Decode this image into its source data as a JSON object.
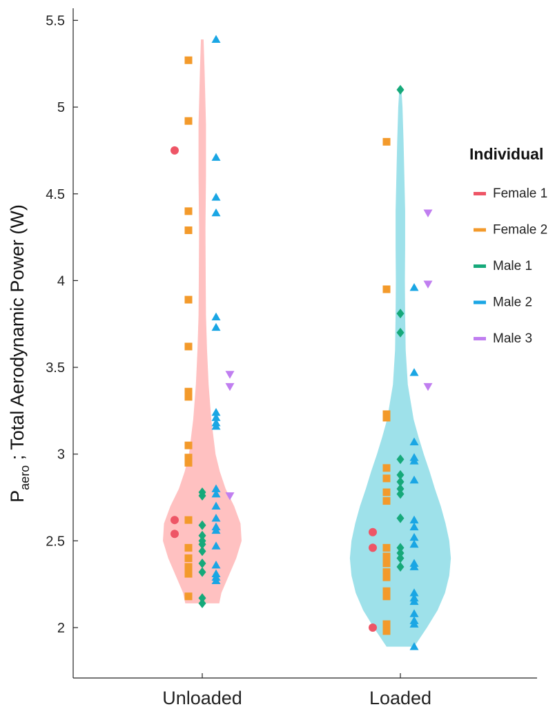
{
  "chart_data": {
    "type": "violin",
    "ylabel_main": "P",
    "ylabel_sub": "aero",
    "ylabel_rest": " ; Total Aerodynamic Power (W)",
    "ylim": [
      1.75,
      5.6
    ],
    "yticks": [
      2,
      2.5,
      3,
      3.5,
      4,
      4.5,
      5,
      5.5
    ],
    "ytick_labels": [
      "2",
      "2.5",
      "3",
      "3.5",
      "4",
      "4.5",
      "5",
      "5.5"
    ],
    "grid": false,
    "legend": {
      "title": "Individual",
      "placement": "right",
      "entries": [
        {
          "name": "Female 1",
          "color": "#EE5566",
          "marker": "circle"
        },
        {
          "name": "Female 2",
          "color": "#F39A2B",
          "marker": "square"
        },
        {
          "name": "Male 1",
          "color": "#16A97A",
          "marker": "diamond"
        },
        {
          "name": "Male 2",
          "color": "#1AA6E4",
          "marker": "triangle-up"
        },
        {
          "name": "Male 3",
          "color": "#C07EF0",
          "marker": "triangle-down"
        }
      ]
    },
    "categories": [
      {
        "name": "Unloaded",
        "fill": "#FFC1C1",
        "density": [
          [
            2.14,
            0.32
          ],
          [
            2.2,
            0.36
          ],
          [
            2.3,
            0.5
          ],
          [
            2.4,
            0.64
          ],
          [
            2.5,
            0.74
          ],
          [
            2.6,
            0.72
          ],
          [
            2.7,
            0.6
          ],
          [
            2.8,
            0.44
          ],
          [
            2.9,
            0.33
          ],
          [
            3.0,
            0.25
          ],
          [
            3.2,
            0.17
          ],
          [
            3.4,
            0.12
          ],
          [
            3.6,
            0.09
          ],
          [
            3.8,
            0.07
          ],
          [
            4.0,
            0.065
          ],
          [
            4.3,
            0.06
          ],
          [
            4.6,
            0.07
          ],
          [
            4.9,
            0.07
          ],
          [
            5.2,
            0.045
          ],
          [
            5.39,
            0.025
          ]
        ],
        "points": {
          "Female 1": [
            4.75,
            2.62,
            2.54
          ],
          "Female 2": [
            5.27,
            4.92,
            4.4,
            4.29,
            3.89,
            3.62,
            3.36,
            3.33,
            3.05,
            2.98,
            2.95,
            2.62,
            2.46,
            2.4,
            2.35,
            2.31,
            2.18
          ],
          "Male 1": [
            2.78,
            2.76,
            2.59,
            2.53,
            2.5,
            2.48,
            2.44,
            2.37,
            2.32,
            2.17,
            2.14
          ],
          "Male 2": [
            5.39,
            4.71,
            4.48,
            4.39,
            3.79,
            3.73,
            3.24,
            3.21,
            3.18,
            3.16,
            2.8,
            2.77,
            2.7,
            2.63,
            2.58,
            2.56,
            2.47,
            2.36,
            2.31,
            2.29,
            2.27
          ],
          "Male 3": [
            3.46,
            3.39,
            2.76
          ]
        }
      },
      {
        "name": "Loaded",
        "fill": "#9EE1EA",
        "density": [
          [
            1.89,
            0.26
          ],
          [
            2.0,
            0.5
          ],
          [
            2.1,
            0.7
          ],
          [
            2.2,
            0.84
          ],
          [
            2.3,
            0.92
          ],
          [
            2.4,
            0.95
          ],
          [
            2.5,
            0.92
          ],
          [
            2.6,
            0.85
          ],
          [
            2.7,
            0.76
          ],
          [
            2.8,
            0.65
          ],
          [
            2.9,
            0.55
          ],
          [
            3.0,
            0.44
          ],
          [
            3.1,
            0.34
          ],
          [
            3.2,
            0.25
          ],
          [
            3.4,
            0.14
          ],
          [
            3.6,
            0.1
          ],
          [
            3.8,
            0.09
          ],
          [
            4.0,
            0.085
          ],
          [
            4.2,
            0.09
          ],
          [
            4.4,
            0.09
          ],
          [
            4.6,
            0.075
          ],
          [
            4.8,
            0.06
          ],
          [
            5.0,
            0.04
          ],
          [
            5.1,
            0.02
          ]
        ],
        "points": {
          "Female 1": [
            2.55,
            2.46,
            2.0
          ],
          "Female 2": [
            4.8,
            3.95,
            3.23,
            3.21,
            2.92,
            2.86,
            2.78,
            2.73,
            2.46,
            2.41,
            2.37,
            2.32,
            2.29,
            2.21,
            2.18,
            2.02,
            1.98
          ],
          "Male 1": [
            5.1,
            3.81,
            3.7,
            2.97,
            2.88,
            2.84,
            2.8,
            2.77,
            2.63,
            2.46,
            2.43,
            2.4,
            2.35
          ],
          "Male 2": [
            3.96,
            3.47,
            3.07,
            2.98,
            2.96,
            2.85,
            2.62,
            2.58,
            2.52,
            2.48,
            2.37,
            2.35,
            2.2,
            2.17,
            2.15,
            2.08,
            2.04,
            2.02,
            1.89
          ],
          "Male 3": [
            4.39,
            3.98,
            3.39
          ]
        }
      }
    ]
  }
}
